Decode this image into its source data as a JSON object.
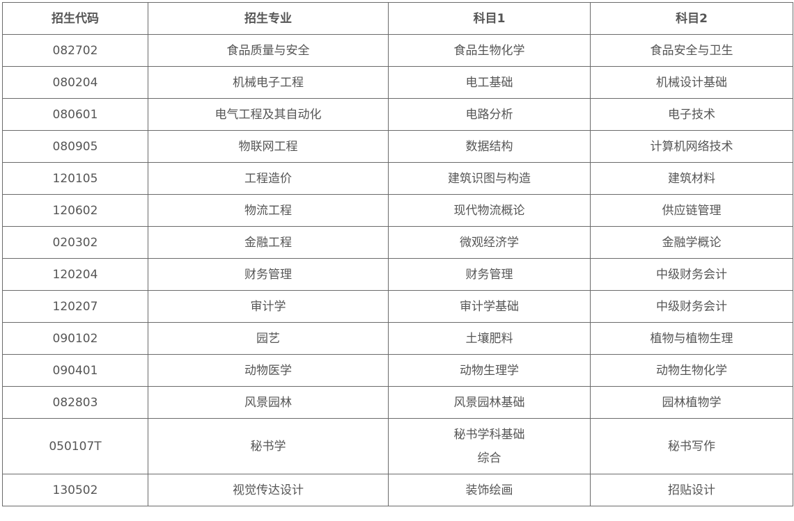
{
  "table": {
    "headers": [
      "招生代码",
      "招生专业",
      "科目1",
      "科目2"
    ],
    "rows": [
      [
        "082702",
        "食品质量与安全",
        "食品生物化学",
        "食品安全与卫生"
      ],
      [
        "080204",
        "机械电子工程",
        "电工基础",
        "机械设计基础"
      ],
      [
        "080601",
        "电气工程及其自动化",
        "电路分析",
        "电子技术"
      ],
      [
        "080905",
        "物联网工程",
        "数据结构",
        "计算机网络技术"
      ],
      [
        "120105",
        "工程造价",
        "建筑识图与构造",
        "建筑材料"
      ],
      [
        "120602",
        "物流工程",
        "现代物流概论",
        "供应链管理"
      ],
      [
        "020302",
        "金融工程",
        "微观经济学",
        "金融学概论"
      ],
      [
        "120204",
        "财务管理",
        "财务管理",
        "中级财务会计"
      ],
      [
        "120207",
        "审计学",
        "审计学基础",
        "中级财务会计"
      ],
      [
        "090102",
        "园艺",
        "土壤肥料",
        "植物与植物生理"
      ],
      [
        "090401",
        "动物医学",
        "动物生理学",
        "动物生物化学"
      ],
      [
        "082803",
        "风景园林",
        "风景园林基础",
        "园林植物学"
      ],
      [
        "050107T",
        "秘书学",
        "秘书学科基础\n综合",
        "秘书写作"
      ],
      [
        "130502",
        "视觉传达设计",
        "装饰绘画",
        "招贴设计"
      ]
    ]
  }
}
